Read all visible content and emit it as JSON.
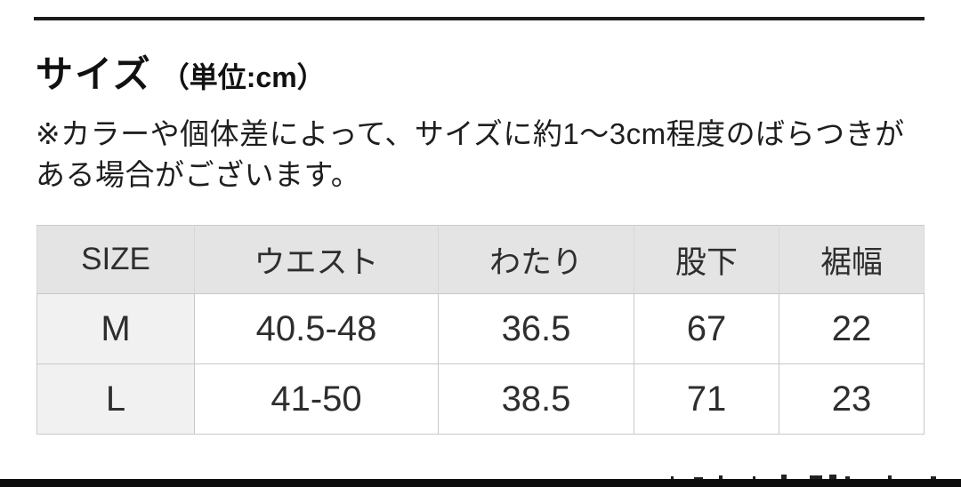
{
  "section": {
    "title": "サイズ",
    "unit": "（単位:cm）",
    "note_lines": [
      "※カラーや個体差によって、サイズに約1〜3cm程度のばらつきが",
      "ある場合がございます。"
    ]
  },
  "size_table": {
    "columns": [
      "SIZE",
      "ウエスト",
      "わたり",
      "股下",
      "裾幅"
    ],
    "rows": [
      {
        "size": "M",
        "waist": "40.5-48",
        "thigh": "36.5",
        "inseam": "67",
        "hem_width": "22"
      },
      {
        "size": "L",
        "waist": "41-50",
        "thigh": "38.5",
        "inseam": "71",
        "hem_width": "23"
      }
    ]
  },
  "colors": {
    "divider": "#1c1c1c",
    "bottom_bar": "#0d0d0d",
    "header_bg": "#e4e4e4",
    "label_col_bg": "#f1f1f1",
    "table_border": "#c9c9c9",
    "text": "#1e1e1e"
  }
}
